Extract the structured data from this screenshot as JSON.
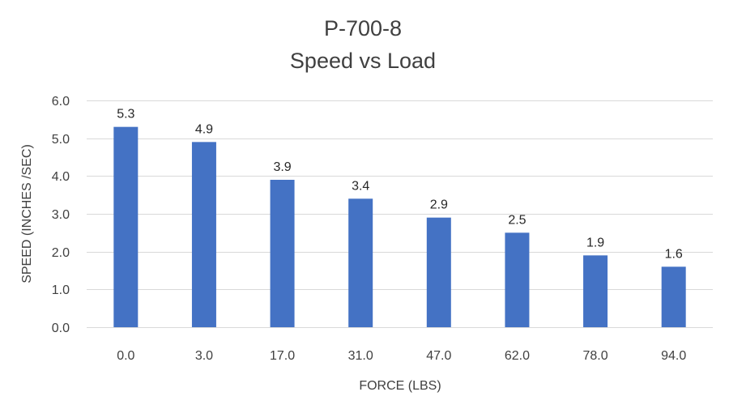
{
  "chart_data": {
    "type": "bar",
    "title": "P-700-8",
    "subtitle": "Speed vs Load",
    "xlabel": "FORCE (LBS)",
    "ylabel": "SPEED (INCHES /SEC)",
    "categories": [
      "0.0",
      "3.0",
      "17.0",
      "31.0",
      "47.0",
      "62.0",
      "78.0",
      "94.0"
    ],
    "values": [
      5.3,
      4.9,
      3.9,
      3.4,
      2.9,
      2.5,
      1.9,
      1.6
    ],
    "data_labels": [
      "5.3",
      "4.9",
      "3.9",
      "3.4",
      "2.9",
      "2.5",
      "1.9",
      "1.6"
    ],
    "ylim": [
      0,
      6
    ],
    "yticks": [
      "0.0",
      "1.0",
      "2.0",
      "3.0",
      "4.0",
      "5.0",
      "6.0"
    ],
    "grid": true,
    "bar_color": "#4472c4"
  }
}
